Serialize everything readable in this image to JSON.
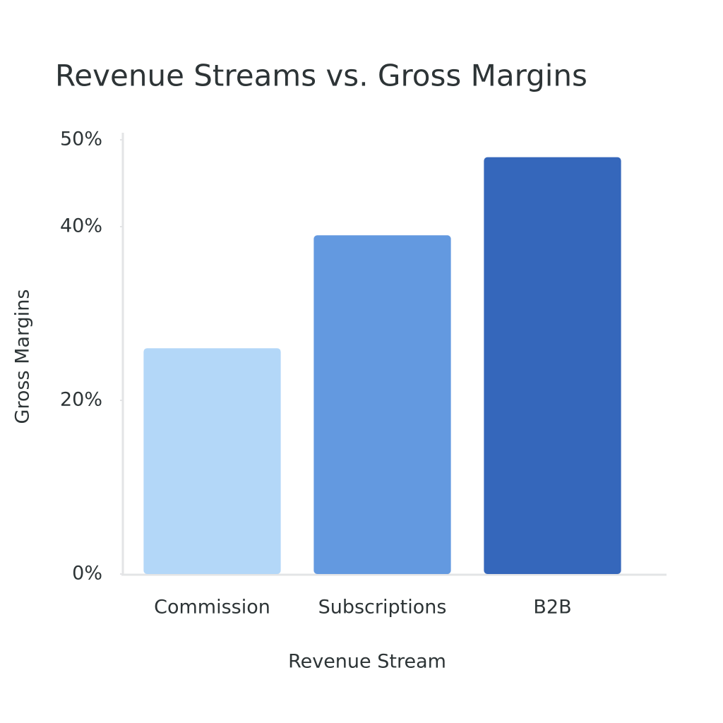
{
  "chart_data": {
    "type": "bar",
    "title": "Revenue Streams vs. Gross Margins",
    "x_label": "Revenue Stream",
    "y_label": "Gross Margins",
    "categories": [
      "Commission",
      "Subscriptions",
      "B2B"
    ],
    "values": [
      26,
      39,
      48
    ],
    "colors": [
      "#b3d7f8",
      "#6399e0",
      "#3567bb"
    ],
    "ylim": [
      0,
      50
    ],
    "yticks": [
      {
        "value": 0,
        "label": "0%"
      },
      {
        "value": 20,
        "label": "20%"
      },
      {
        "value": 40,
        "label": "40%"
      },
      {
        "value": 50,
        "label": "50%"
      }
    ],
    "grid": false
  }
}
